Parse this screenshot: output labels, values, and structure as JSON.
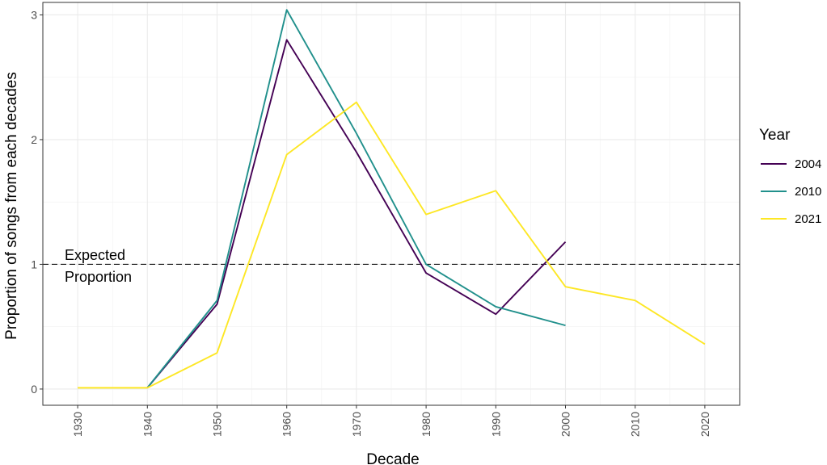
{
  "chart_data": {
    "type": "line",
    "xlabel": "Decade",
    "ylabel": "Proportion of songs from each decades",
    "x_ticks": [
      "1930",
      "1940",
      "1950",
      "1960",
      "1970",
      "1980",
      "1990",
      "2000",
      "2010",
      "2020"
    ],
    "y_ticks": [
      "0",
      "1",
      "2",
      "3"
    ],
    "xlim": [
      1925,
      2025
    ],
    "ylim": [
      -0.13,
      3.1
    ],
    "grid": true,
    "reference_line": {
      "y": 1,
      "style": "dashed",
      "label_line1": "Expected",
      "label_line2": "Proportion"
    },
    "legend": {
      "title": "Year",
      "position": "right"
    },
    "series": [
      {
        "name": "2004",
        "color": "#440154",
        "x": [
          1940,
          1950,
          1960,
          1970,
          1980,
          1990,
          2000
        ],
        "y": [
          0.01,
          0.68,
          2.8,
          1.9,
          0.93,
          0.6,
          1.18
        ]
      },
      {
        "name": "2010",
        "color": "#21908C",
        "x": [
          1940,
          1950,
          1960,
          1970,
          1980,
          1990,
          2000
        ],
        "y": [
          0.01,
          0.71,
          3.04,
          2.05,
          1.0,
          0.66,
          0.51
        ]
      },
      {
        "name": "2021",
        "color": "#FDE725",
        "x": [
          1930,
          1940,
          1950,
          1960,
          1970,
          1980,
          1990,
          2000,
          2010,
          2020
        ],
        "y": [
          0.01,
          0.01,
          0.29,
          1.88,
          2.3,
          1.4,
          1.59,
          0.82,
          0.71,
          0.36
        ]
      }
    ]
  }
}
